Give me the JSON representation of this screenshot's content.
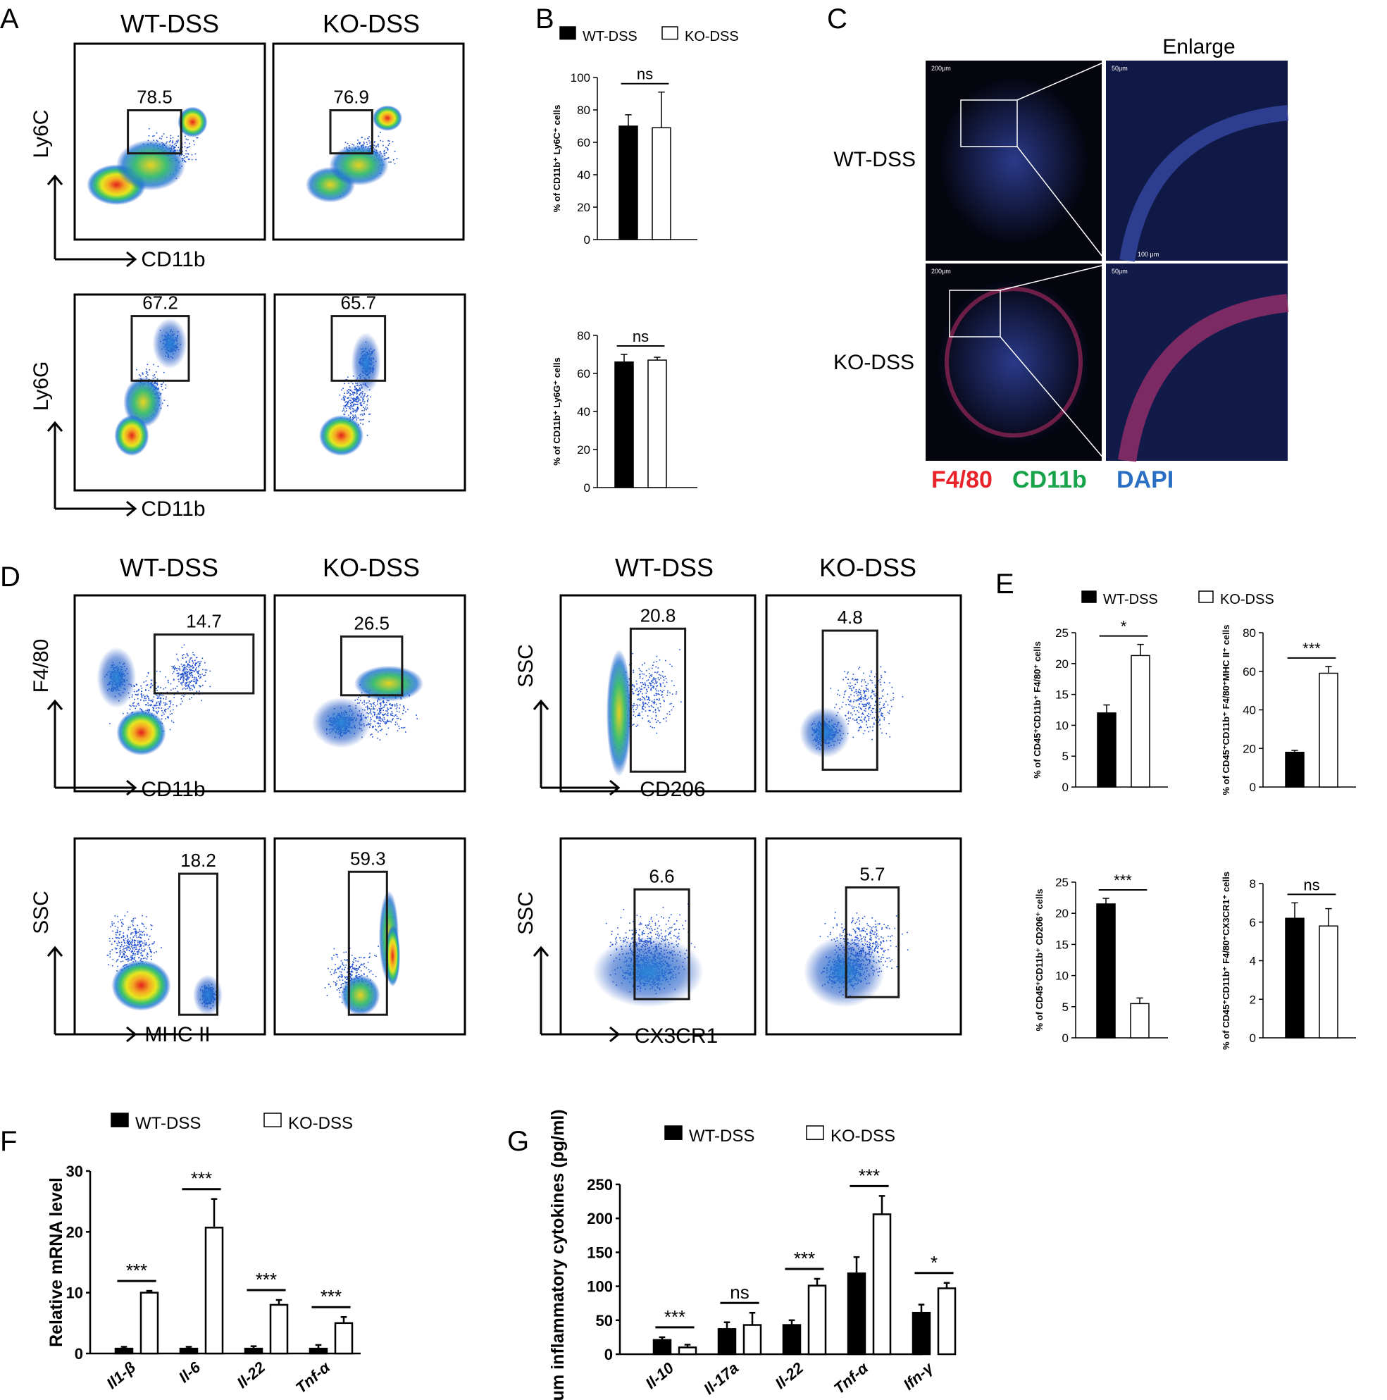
{
  "panel_letters": [
    "A",
    "B",
    "C",
    "D",
    "E",
    "F",
    "G"
  ],
  "colors": {
    "wt_bar": "#000000",
    "ko_bar": "#ffffff",
    "f480": "#e8242a",
    "cd11b": "#17a34a",
    "dapi": "#2a6fc4"
  },
  "flow_A": {
    "group_titles": [
      "WT-DSS",
      "KO-DSS"
    ],
    "row1": {
      "y_axis": "Ly6C",
      "x_axis": "CD11b",
      "gates": [
        "78.5",
        "76.9"
      ]
    },
    "row2": {
      "y_axis": "Ly6G",
      "x_axis": "CD11b",
      "gates": [
        "67.2",
        "65.7"
      ]
    }
  },
  "micro_C": {
    "enlarge_title": "Enlarge",
    "row_labels": [
      "WT-DSS",
      "KO-DSS"
    ],
    "scale_labels": [
      "200μm",
      "50μm",
      "100 μm"
    ],
    "stains": [
      "F4/80",
      "CD11b",
      "DAPI"
    ]
  },
  "flow_D": {
    "group_titles": [
      "WT-DSS",
      "KO-DSS",
      "WT-DSS",
      "KO-DSS"
    ],
    "left_row1": {
      "y_axis": "F4/80",
      "x_axis": "CD11b",
      "gates": [
        "14.7",
        "26.5"
      ]
    },
    "left_row2": {
      "y_axis": "SSC",
      "x_axis": "MHC II",
      "gates": [
        "18.2",
        "59.3"
      ]
    },
    "right_row1": {
      "y_axis": "SSC",
      "x_axis": "CD206",
      "gates": [
        "20.8",
        "4.8"
      ]
    },
    "right_row2": {
      "y_axis": "SSC",
      "x_axis": "CX3CR1",
      "gates": [
        "6.6",
        "5.7"
      ]
    }
  },
  "chart_data": [
    {
      "panel": "B",
      "type": "bar",
      "legend": [
        "WT-DSS",
        "KO-DSS"
      ],
      "ylabel": "% of CD11b⁺ Ly6C⁺ cells",
      "ylim": [
        0,
        100
      ],
      "yticks": [
        0,
        20,
        40,
        60,
        80,
        100
      ],
      "series": [
        {
          "name": "WT-DSS",
          "values": [
            70
          ],
          "err": [
            7
          ]
        },
        {
          "name": "KO-DSS",
          "values": [
            69
          ],
          "err": [
            22
          ]
        }
      ],
      "significance": "ns"
    },
    {
      "panel": "B",
      "type": "bar",
      "ylabel": "% of CD11b⁺ Ly6G⁺ cells",
      "ylim": [
        0,
        80
      ],
      "yticks": [
        0,
        20,
        40,
        60,
        80
      ],
      "series": [
        {
          "name": "WT-DSS",
          "values": [
            66
          ],
          "err": [
            4
          ]
        },
        {
          "name": "KO-DSS",
          "values": [
            67
          ],
          "err": [
            1.5
          ]
        }
      ],
      "significance": "ns"
    },
    {
      "panel": "E",
      "type": "bar",
      "legend": [
        "WT-DSS",
        "KO-DSS"
      ],
      "ylabel": "% of CD45⁺CD11b⁺ F4/80⁺ cells",
      "ylim": [
        0,
        25
      ],
      "yticks": [
        0,
        5,
        10,
        15,
        20,
        25
      ],
      "series": [
        {
          "name": "WT-DSS",
          "values": [
            12
          ],
          "err": [
            1.3
          ]
        },
        {
          "name": "KO-DSS",
          "values": [
            21.3
          ],
          "err": [
            1.8
          ]
        }
      ],
      "significance": "*"
    },
    {
      "panel": "E",
      "type": "bar",
      "ylabel": "% of CD45⁺CD11b⁺ F4/80⁺MHC II⁺ cells",
      "ylim": [
        0,
        80
      ],
      "yticks": [
        0,
        20,
        40,
        60,
        80
      ],
      "series": [
        {
          "name": "WT-DSS",
          "values": [
            18
          ],
          "err": [
            1
          ]
        },
        {
          "name": "KO-DSS",
          "values": [
            59
          ],
          "err": [
            3.5
          ]
        }
      ],
      "significance": "***"
    },
    {
      "panel": "E",
      "type": "bar",
      "ylabel": "% of CD45⁺CD11b⁺ CD206⁺ cells",
      "ylim": [
        0,
        25
      ],
      "yticks": [
        0,
        5,
        10,
        15,
        20,
        25
      ],
      "series": [
        {
          "name": "WT-DSS",
          "values": [
            21.5
          ],
          "err": [
            0.9
          ]
        },
        {
          "name": "KO-DSS",
          "values": [
            5.5
          ],
          "err": [
            0.9
          ]
        }
      ],
      "significance": "***"
    },
    {
      "panel": "E",
      "type": "bar",
      "ylabel": "% of CD45⁺CD11b⁺ F4/80⁺CX3CR1⁺ cells",
      "ylim": [
        0,
        8
      ],
      "yticks": [
        0,
        2,
        4,
        6,
        8
      ],
      "series": [
        {
          "name": "WT-DSS",
          "values": [
            6.2
          ],
          "err": [
            0.8
          ]
        },
        {
          "name": "KO-DSS",
          "values": [
            5.8
          ],
          "err": [
            0.9
          ]
        }
      ],
      "significance": "ns"
    },
    {
      "panel": "F",
      "type": "bar",
      "legend": [
        "WT-DSS",
        "KO-DSS"
      ],
      "ylabel": "Relative mRNA level",
      "ylim": [
        0,
        30
      ],
      "yticks": [
        0,
        10,
        20,
        30
      ],
      "categories": [
        "Il1-β",
        "Il-6",
        "Il-22",
        "Tnf-α"
      ],
      "series": [
        {
          "name": "WT-DSS",
          "values": [
            0.8,
            0.8,
            0.8,
            0.8
          ],
          "err": [
            0.3,
            0.3,
            0.4,
            0.6
          ]
        },
        {
          "name": "KO-DSS",
          "values": [
            10,
            20.7,
            8,
            5
          ],
          "err": [
            0.3,
            4.7,
            0.8,
            1
          ]
        }
      ],
      "significance": [
        "***",
        "***",
        "***",
        "***"
      ]
    },
    {
      "panel": "G",
      "type": "bar",
      "legend": [
        "WT-DSS",
        "KO-DSS"
      ],
      "ylabel": "Serum inflammatory cytokines (pg/ml)",
      "ylim": [
        0,
        250
      ],
      "yticks": [
        0,
        50,
        100,
        150,
        200,
        250
      ],
      "categories": [
        "Il-10",
        "Il-17a",
        "Il-22",
        "Tnf-α",
        "Ifn-γ"
      ],
      "series": [
        {
          "name": "WT-DSS",
          "values": [
            21,
            37,
            43,
            119,
            61
          ],
          "err": [
            4,
            10,
            7,
            24,
            12
          ]
        },
        {
          "name": "KO-DSS",
          "values": [
            10,
            43,
            101,
            206,
            97
          ],
          "err": [
            4,
            18,
            10,
            27,
            8
          ]
        }
      ],
      "significance": [
        "***",
        "ns",
        "***",
        "***",
        "*"
      ]
    }
  ]
}
